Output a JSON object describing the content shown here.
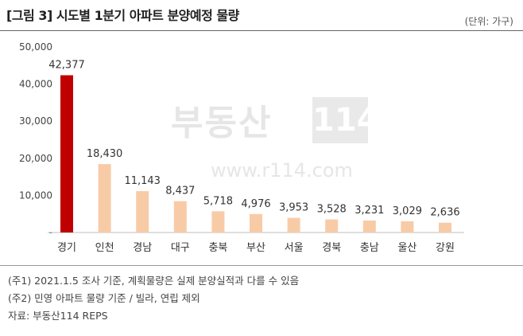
{
  "header": {
    "title": "[그림 3] 시도별 1분기 아파트 분양예정 물량",
    "unit": "(단위: 가구)"
  },
  "watermark": {
    "text": "부동산",
    "box": "114",
    "url": "www.r114.com"
  },
  "colors": {
    "highlight": "#c00000",
    "bar": "#f8cba7",
    "axis_text": "#444444"
  },
  "chart_data": {
    "type": "bar",
    "title": "[그림 3] 시도별 1분기 아파트 분양예정 물량",
    "xlabel": "",
    "ylabel": "",
    "unit": "(단위: 가구)",
    "ylim": [
      0,
      50000
    ],
    "yticks": [
      0,
      10000,
      20000,
      30000,
      40000,
      50000
    ],
    "ytick_labels": [
      "-",
      "10,000",
      "20,000",
      "30,000",
      "40,000",
      "50,000"
    ],
    "categories": [
      "경기",
      "인천",
      "경남",
      "대구",
      "충북",
      "부산",
      "서울",
      "경북",
      "충남",
      "울산",
      "강원"
    ],
    "values": [
      42377,
      18430,
      11143,
      8437,
      5718,
      4976,
      3953,
      3528,
      3231,
      3029,
      2636
    ],
    "value_labels": [
      "42,377",
      "18,430",
      "11,143",
      "8,437",
      "5,718",
      "4,976",
      "3,953",
      "3,528",
      "3,231",
      "3,029",
      "2,636"
    ],
    "highlight_index": 0,
    "grid": false,
    "legend": "none"
  },
  "notes": [
    "(주1) 2021.1.5 조사 기준, 계획물량은 실제 분양실적과 다를 수 있음",
    "(주2) 민영 아파트 물량 기준 / 빌라, 연립 제외",
    "자료: 부동산114 REPS"
  ]
}
